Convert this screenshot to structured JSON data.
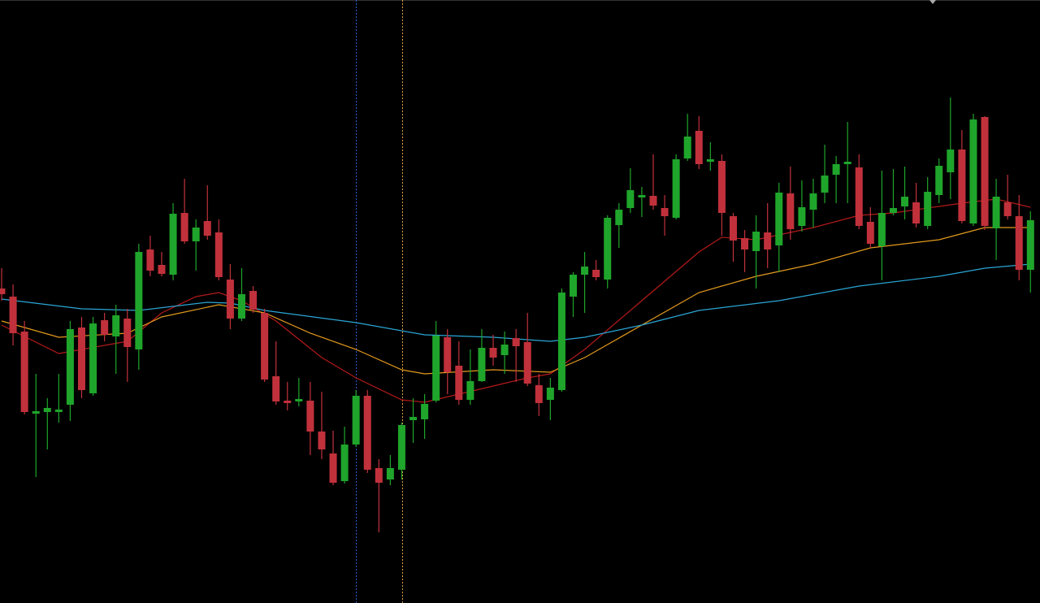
{
  "chart_data": {
    "type": "candlestick",
    "categories": [
      null,
      null,
      null,
      null,
      null,
      null,
      null,
      null,
      null,
      null,
      null,
      null,
      null,
      null,
      null,
      null,
      null,
      null,
      null,
      null,
      null,
      null,
      null,
      null,
      null,
      null,
      null,
      null,
      null,
      null,
      null,
      null,
      null,
      null,
      null,
      null,
      null,
      null,
      null,
      null,
      null,
      null,
      null,
      null,
      null,
      null,
      null,
      null,
      null,
      null,
      null,
      null,
      null,
      null,
      null,
      null,
      null,
      null,
      null,
      null,
      null,
      null,
      null,
      null,
      null,
      null,
      null,
      null,
      null,
      null,
      null,
      null,
      null,
      null,
      null,
      null,
      null,
      null,
      null,
      null,
      null,
      null,
      null,
      null,
      null,
      null,
      null,
      null,
      null,
      null,
      null
    ],
    "open": [
      387,
      377,
      334,
      233,
      235,
      235,
      244,
      339,
      258,
      348,
      328,
      350,
      312,
      435,
      416,
      404,
      480,
      445,
      470,
      456,
      398,
      350,
      384,
      357,
      279,
      249,
      248,
      249,
      211,
      184,
      150,
      195,
      255,
      166,
      152,
      164,
      225,
      226,
      249,
      327,
      292,
      250,
      273,
      314,
      305,
      326,
      321,
      268,
      250,
      262,
      377,
      404,
      410,
      398,
      465,
      486,
      499,
      501,
      486,
      474,
      547,
      581,
      543,
      544,
      476,
      449,
      433,
      456,
      440,
      504,
      464,
      484,
      505,
      527,
      540,
      536,
      469,
      439,
      480,
      488,
      493,
      464,
      502,
      530,
      558,
      467,
      598,
      461,
      493,
      476,
      410
    ],
    "high": [
      412,
      392,
      347,
      282,
      252,
      282,
      347,
      352,
      352,
      357,
      367,
      362,
      442,
      452,
      432,
      492,
      522,
      472,
      514,
      472,
      417,
      412,
      390,
      362,
      322,
      272,
      277,
      272,
      260,
      212,
      217,
      262,
      262,
      177,
      182,
      222,
      252,
      257,
      347,
      337,
      322,
      312,
      337,
      330,
      334,
      337,
      357,
      282,
      277,
      387,
      407,
      432,
      422,
      477,
      492,
      535,
      512,
      552,
      502,
      552,
      602,
      599,
      567,
      552,
      480,
      459,
      477,
      492,
      517,
      537,
      520,
      522,
      564,
      550,
      592,
      552,
      487,
      532,
      534,
      537,
      517,
      524,
      547,
      622,
      582,
      602,
      599,
      522,
      527,
      502,
      482
    ],
    "low": [
      372,
      317,
      232,
      155,
      189,
      222,
      224,
      252,
      255,
      322,
      282,
      272,
      287,
      402,
      402,
      397,
      442,
      409,
      447,
      397,
      337,
      347,
      357,
      272,
      244,
      237,
      242,
      182,
      177,
      145,
      147,
      192,
      160,
      87,
      145,
      152,
      197,
      202,
      247,
      257,
      244,
      244,
      272,
      292,
      282,
      272,
      267,
      230,
      225,
      260,
      352,
      357,
      397,
      387,
      437,
      480,
      475,
      484,
      452,
      472,
      544,
      534,
      532,
      452,
      420,
      407,
      387,
      412,
      407,
      447,
      457,
      462,
      492,
      492,
      492,
      460,
      437,
      397,
      477,
      472,
      462,
      460,
      492,
      497,
      467,
      464,
      459,
      422,
      472,
      397,
      382
    ],
    "close": [
      380,
      332,
      235,
      236,
      240,
      238,
      337,
      262,
      344,
      330,
      354,
      315,
      432,
      409,
      405,
      479,
      445,
      462,
      452,
      401,
      350,
      380,
      361,
      275,
      248,
      246,
      251,
      211,
      189,
      148,
      195,
      255,
      164,
      148,
      166,
      219,
      229,
      245,
      329,
      284,
      250,
      273,
      314,
      302,
      318,
      316,
      270,
      246,
      265,
      382,
      404,
      414,
      401,
      474,
      484,
      508,
      502,
      489,
      476,
      546,
      574,
      540,
      546,
      480,
      446,
      435,
      457,
      435,
      505,
      460,
      487,
      504,
      526,
      540,
      543,
      464,
      442,
      480,
      486,
      500,
      467,
      506,
      538,
      558,
      470,
      595,
      464,
      500,
      476,
      410,
      471
    ],
    "up_color": "#1fa52b",
    "down_color": "#c1313b",
    "lines": [
      {
        "color": "#b41a1a",
        "x": [
          0,
          5,
          11,
          14,
          17,
          19,
          21,
          24,
          28,
          31,
          35,
          37,
          40,
          43,
          46,
          48,
          51,
          56,
          61,
          63,
          66,
          71,
          75,
          78,
          84,
          87,
          90
        ],
        "values": [
          342,
          307,
          322,
          357,
          377,
          382,
          372,
          347,
          302,
          277,
          250,
          247,
          257,
          267,
          277,
          282,
          312,
          372,
          432,
          450,
          447,
          462,
          477,
          480,
          492,
          497,
          487
        ]
      },
      {
        "color": "#e39a1e",
        "x": [
          0,
          5,
          11,
          14,
          19,
          23,
          27,
          31,
          35,
          37,
          43,
          48,
          51,
          56,
          61,
          66,
          71,
          76,
          82,
          86,
          90
        ],
        "values": [
          347,
          327,
          332,
          352,
          367,
          357,
          332,
          312,
          287,
          282,
          287,
          284,
          302,
          342,
          382,
          402,
          417,
          437,
          447,
          462,
          462
        ]
      },
      {
        "color": "#2ba6d6",
        "x": [
          0,
          7,
          12,
          18,
          20,
          23,
          31,
          37,
          43,
          48,
          51,
          56,
          61,
          68,
          75,
          82,
          86,
          90
        ],
        "values": [
          374,
          362,
          360,
          370,
          369,
          360,
          345,
          330,
          327,
          322,
          327,
          342,
          360,
          372,
          390,
          402,
          412,
          417
        ]
      }
    ],
    "ylim": [
      0,
      742
    ]
  }
}
